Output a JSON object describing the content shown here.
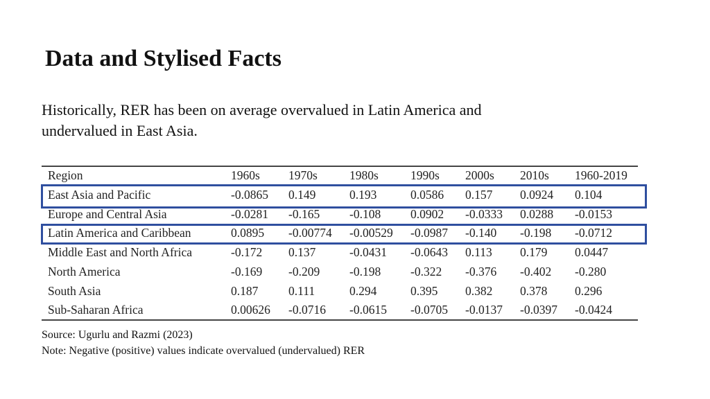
{
  "header": {
    "title": "Data and Stylised Facts"
  },
  "body": {
    "lines": [
      "Historically, RER has been on average overvalued in Latin America and",
      "undervalued in East Asia."
    ]
  },
  "table": {
    "columns": [
      "Region",
      "1960s",
      "1970s",
      "1980s",
      "1990s",
      "2000s",
      "2010s",
      "1960-2019"
    ],
    "rows": [
      [
        "East Asia and Pacific",
        "-0.0865",
        "0.149",
        "0.193",
        "0.0586",
        "0.157",
        "0.0924",
        "0.104"
      ],
      [
        "Europe and Central Asia",
        "-0.0281",
        "-0.165",
        "-0.108",
        "0.0902",
        "-0.0333",
        "0.0288",
        "-0.0153"
      ],
      [
        "Latin America and Caribbean",
        "0.0895",
        "-0.00774",
        "-0.00529",
        "-0.0987",
        "-0.140",
        "-0.198",
        "-0.0712"
      ],
      [
        "Middle East and North Africa",
        "-0.172",
        "0.137",
        "-0.0431",
        "-0.0643",
        "0.113",
        "0.179",
        "0.0447"
      ],
      [
        "North America",
        "-0.169",
        "-0.209",
        "-0.198",
        "-0.322",
        "-0.376",
        "-0.402",
        "-0.280"
      ],
      [
        "South Asia",
        "0.187",
        "0.111",
        "0.294",
        "0.395",
        "0.382",
        "0.378",
        "0.296"
      ],
      [
        "Sub-Saharan Africa",
        "0.00626",
        "-0.0716",
        "-0.0615",
        "-0.0705",
        "-0.0137",
        "-0.0397",
        "-0.0424"
      ]
    ]
  },
  "footer": {
    "source": "Source: Ugurlu and Razmi (2023)",
    "note": "Note: Negative (positive) values indicate overvalued (undervalued) RER"
  }
}
